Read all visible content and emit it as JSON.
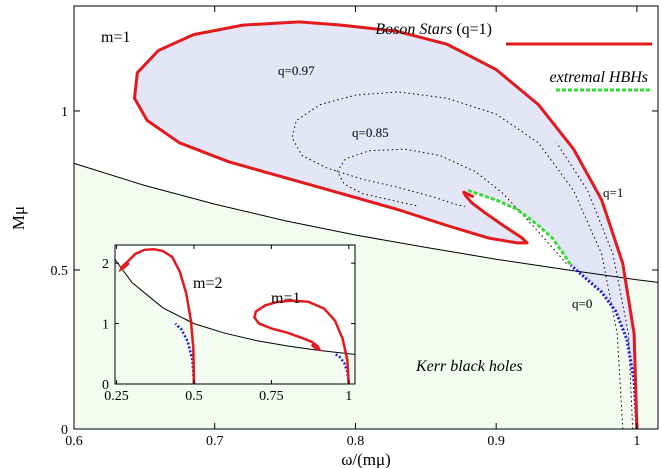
{
  "chart_data": [
    {
      "type": "line",
      "role": "main",
      "xlabel": "ω/(mμ)",
      "ylabel": "Mμ",
      "xlim": [
        0.6,
        1.015
      ],
      "ylim": [
        0,
        1.33
      ],
      "xticks": [
        0.6,
        0.7,
        0.8,
        0.9,
        1
      ],
      "yticks": [
        0,
        0.5,
        1
      ],
      "xtick_labels": [
        "0.6",
        "0.7",
        "0.8",
        "0.9",
        "1"
      ],
      "ytick_labels": [
        "0",
        "0.5",
        "1"
      ],
      "grid": false,
      "legend": {
        "position": "top-right",
        "entries": [
          {
            "prefix": "Boson Stars",
            "suffix": " (q=1)",
            "color": "#e3191c",
            "style": "solid"
          },
          {
            "prefix": "extremal HBHs",
            "suffix": "",
            "color": "#33dd33",
            "style": "dashed"
          }
        ]
      },
      "annotations": {
        "m_label": "m=1",
        "q097": "q=0.97",
        "q085": "q=0.85",
        "q1": "q=1",
        "q0": "q=0",
        "kerr": "Kerr black holes"
      },
      "colors": {
        "boson": "#e3191c",
        "extremal": "#33dd33",
        "fill": "#e4e6f7",
        "kerr_fill": "#f4fbf0",
        "q0": "#1a1adb"
      },
      "series": [
        {
          "name": "Boson Stars",
          "points": [
            [
              1.0,
              0.0
            ],
            [
              0.998,
              0.3
            ],
            [
              0.99,
              0.52
            ],
            [
              0.975,
              0.72
            ],
            [
              0.955,
              0.88
            ],
            [
              0.93,
              1.02
            ],
            [
              0.9,
              1.13
            ],
            [
              0.865,
              1.21
            ],
            [
              0.83,
              1.25
            ],
            [
              0.79,
              1.27
            ],
            [
              0.76,
              1.28
            ],
            [
              0.72,
              1.27
            ],
            [
              0.685,
              1.24
            ],
            [
              0.66,
              1.19
            ],
            [
              0.645,
              1.12
            ],
            [
              0.643,
              1.04
            ],
            [
              0.652,
              0.97
            ],
            [
              0.675,
              0.9
            ],
            [
              0.71,
              0.84
            ],
            [
              0.75,
              0.79
            ],
            [
              0.79,
              0.74
            ],
            [
              0.83,
              0.69
            ],
            [
              0.865,
              0.64
            ],
            [
              0.895,
              0.6
            ],
            [
              0.915,
              0.585
            ],
            [
              0.922,
              0.585
            ],
            [
              0.918,
              0.602
            ],
            [
              0.905,
              0.64
            ],
            [
              0.892,
              0.68
            ],
            [
              0.883,
              0.71
            ],
            [
              0.878,
              0.735
            ],
            [
              0.877,
              0.745
            ],
            [
              0.879,
              0.74
            ],
            [
              0.884,
              0.73
            ]
          ]
        },
        {
          "name": "extremal HBHs",
          "points": [
            [
              0.88,
              0.75
            ],
            [
              0.9,
              0.72
            ],
            [
              0.915,
              0.69
            ],
            [
              0.93,
              0.64
            ],
            [
              0.94,
              0.6
            ],
            [
              0.948,
              0.55
            ],
            [
              0.953,
              0.515
            ]
          ]
        },
        {
          "name": "q=0.97",
          "points": [
            [
              0.99,
              0.0
            ],
            [
              0.986,
              0.3
            ],
            [
              0.975,
              0.55
            ],
            [
              0.955,
              0.75
            ],
            [
              0.93,
              0.9
            ],
            [
              0.9,
              0.99
            ],
            [
              0.865,
              1.04
            ],
            [
              0.83,
              1.06
            ],
            [
              0.8,
              1.05
            ],
            [
              0.775,
              1.02
            ],
            [
              0.758,
              0.97
            ],
            [
              0.755,
              0.915
            ],
            [
              0.762,
              0.86
            ],
            [
              0.78,
              0.82
            ],
            [
              0.805,
              0.785
            ],
            [
              0.83,
              0.76
            ],
            [
              0.855,
              0.73
            ],
            [
              0.872,
              0.705
            ],
            [
              0.878,
              0.7
            ]
          ]
        },
        {
          "name": "q=0.85",
          "points": [
            [
              0.95,
              0.52
            ],
            [
              0.93,
              0.62
            ],
            [
              0.905,
              0.74
            ],
            [
              0.885,
              0.81
            ],
            [
              0.86,
              0.86
            ],
            [
              0.835,
              0.88
            ],
            [
              0.81,
              0.875
            ],
            [
              0.793,
              0.85
            ],
            [
              0.787,
              0.81
            ],
            [
              0.792,
              0.77
            ],
            [
              0.805,
              0.74
            ],
            [
              0.825,
              0.72
            ],
            [
              0.845,
              0.7
            ]
          ]
        },
        {
          "name": "q=1",
          "points": [
            [
              0.997,
              0.0
            ],
            [
              0.994,
              0.3
            ],
            [
              0.983,
              0.55
            ],
            [
              0.965,
              0.75
            ],
            [
              0.943,
              0.9
            ]
          ]
        },
        {
          "name": "q=0",
          "points": [
            [
              1.0,
              0.0
            ],
            [
              0.998,
              0.15
            ],
            [
              0.993,
              0.28
            ],
            [
              0.985,
              0.37
            ],
            [
              0.975,
              0.43
            ],
            [
              0.962,
              0.48
            ],
            [
              0.953,
              0.515
            ]
          ]
        },
        {
          "name": "Kerr",
          "points": [
            [
              0.6,
              0.835
            ],
            [
              0.65,
              0.766
            ],
            [
              0.7,
              0.707
            ],
            [
              0.75,
              0.655
            ],
            [
              0.8,
              0.61
            ],
            [
              0.85,
              0.571
            ],
            [
              0.9,
              0.534
            ],
            [
              0.95,
              0.501
            ],
            [
              1.0,
              0.469
            ],
            [
              1.015,
              0.461
            ]
          ]
        }
      ]
    },
    {
      "type": "line",
      "role": "inset",
      "xlim": [
        0.245,
        1.02
      ],
      "ylim": [
        0,
        2.3
      ],
      "xticks": [
        0.25,
        0.5,
        0.75,
        1
      ],
      "yticks": [
        0,
        1,
        2
      ],
      "xtick_labels": [
        "0.25",
        "0.5",
        "0.75",
        "1"
      ],
      "ytick_labels": [
        "0",
        "1",
        "2"
      ],
      "annotations": {
        "m2": "m=2",
        "m1": "m=1"
      },
      "series": [
        {
          "name": "m=2 boson stars",
          "points": [
            [
              0.5,
              0.0
            ],
            [
              0.498,
              0.6
            ],
            [
              0.49,
              1.05
            ],
            [
              0.475,
              1.5
            ],
            [
              0.455,
              1.85
            ],
            [
              0.43,
              2.1
            ],
            [
              0.4,
              2.2
            ],
            [
              0.37,
              2.23
            ],
            [
              0.34,
              2.22
            ],
            [
              0.31,
              2.15
            ],
            [
              0.285,
              2.02
            ],
            [
              0.27,
              1.95
            ],
            [
              0.265,
              1.9
            ],
            [
              0.275,
              1.93
            ],
            [
              0.29,
              2.0
            ]
          ]
        },
        {
          "name": "m=1 boson stars",
          "points": [
            [
              1.0,
              0.0
            ],
            [
              0.995,
              0.4
            ],
            [
              0.98,
              0.75
            ],
            [
              0.955,
              1.05
            ],
            [
              0.92,
              1.25
            ],
            [
              0.87,
              1.36
            ],
            [
              0.82,
              1.38
            ],
            [
              0.77,
              1.36
            ],
            [
              0.73,
              1.3
            ],
            [
              0.7,
              1.2
            ],
            [
              0.695,
              1.1
            ],
            [
              0.71,
              1.0
            ],
            [
              0.75,
              0.92
            ],
            [
              0.8,
              0.85
            ],
            [
              0.85,
              0.76
            ],
            [
              0.88,
              0.7
            ],
            [
              0.9,
              0.62
            ],
            [
              0.905,
              0.57
            ],
            [
              0.895,
              0.58
            ],
            [
              0.88,
              0.65
            ]
          ]
        },
        {
          "name": "m=2 q=0",
          "points": [
            [
              0.5,
              0.0
            ],
            [
              0.495,
              0.4
            ],
            [
              0.48,
              0.7
            ],
            [
              0.46,
              0.9
            ],
            [
              0.44,
              1.0
            ]
          ]
        },
        {
          "name": "m=1 q=0",
          "points": [
            [
              1.0,
              0.0
            ],
            [
              0.995,
              0.2
            ],
            [
              0.985,
              0.35
            ],
            [
              0.97,
              0.45
            ],
            [
              0.955,
              0.5
            ]
          ]
        },
        {
          "name": "Kerr",
          "points": [
            [
              0.245,
              2.06
            ],
            [
              0.3,
              1.68
            ],
            [
              0.4,
              1.26
            ],
            [
              0.5,
              1.0
            ],
            [
              0.6,
              0.84
            ],
            [
              0.7,
              0.72
            ],
            [
              0.8,
              0.63
            ],
            [
              0.9,
              0.56
            ],
            [
              1.0,
              0.5
            ],
            [
              1.02,
              0.49
            ]
          ]
        }
      ]
    }
  ]
}
